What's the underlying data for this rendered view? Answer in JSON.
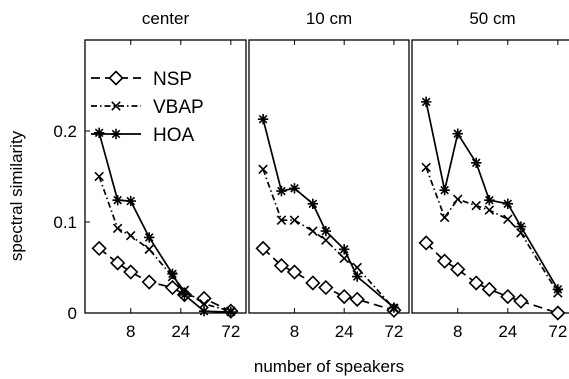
{
  "chart_data": {
    "type": "line",
    "xlabel": "number of speakers",
    "ylabel": "spectral similarity",
    "x_tick_labels": [
      "8",
      "24",
      "72"
    ],
    "y_tick_labels": [
      "0",
      "0.1",
      "0.2"
    ],
    "ylim": [
      0,
      0.3
    ],
    "grid": false,
    "legend_position": "top-left of first panel",
    "series_styles": {
      "NSP": {
        "line": "dashed",
        "marker": "diamond",
        "color": "#000000"
      },
      "VBAP": {
        "line": "dashdot",
        "marker": "x",
        "color": "#000000"
      },
      "HOA": {
        "line": "solid",
        "marker": "asterisk",
        "color": "#000000"
      }
    },
    "panels": [
      {
        "title": "center",
        "legend": [
          "NSP",
          "VBAP",
          "HOA"
        ],
        "series": [
          {
            "name": "NSP",
            "x": [
              4,
              6,
              8,
              12,
              20,
              26,
              40,
              72
            ],
            "values": [
              0.071,
              0.055,
              0.045,
              0.034,
              0.028,
              0.02,
              0.016,
              0.002
            ]
          },
          {
            "name": "VBAP",
            "x": [
              4,
              6,
              8,
              12,
              20,
              26,
              40,
              72
            ],
            "values": [
              0.15,
              0.093,
              0.085,
              0.07,
              0.04,
              0.025,
              0.01,
              0.002
            ]
          },
          {
            "name": "HOA",
            "x": [
              4,
              6,
              8,
              12,
              20,
              26,
              40,
              72
            ],
            "values": [
              0.198,
              0.124,
              0.123,
              0.083,
              0.043,
              0.02,
              0.002,
              0.001
            ]
          }
        ]
      },
      {
        "title": "10 cm",
        "legend": [],
        "series": [
          {
            "name": "NSP",
            "x": [
              4,
              6,
              8,
              12,
              16,
              24,
              32,
              72
            ],
            "values": [
              0.071,
              0.052,
              0.045,
              0.033,
              0.028,
              0.018,
              0.015,
              0.003
            ]
          },
          {
            "name": "VBAP",
            "x": [
              4,
              6,
              8,
              12,
              16,
              24,
              32,
              72
            ],
            "values": [
              0.158,
              0.102,
              0.102,
              0.09,
              0.08,
              0.06,
              0.05,
              0.005
            ]
          },
          {
            "name": "HOA",
            "x": [
              4,
              6,
              8,
              12,
              16,
              24,
              32,
              72
            ],
            "values": [
              0.213,
              0.134,
              0.137,
              0.12,
              0.09,
              0.07,
              0.04,
              0.006
            ]
          }
        ]
      },
      {
        "title": "50 cm",
        "legend": [],
        "series": [
          {
            "name": "NSP",
            "x": [
              4,
              6,
              8,
              12,
              16,
              24,
              32,
              72
            ],
            "values": [
              0.077,
              0.057,
              0.048,
              0.033,
              0.026,
              0.018,
              0.013,
              0.0
            ]
          },
          {
            "name": "VBAP",
            "x": [
              4,
              6,
              8,
              12,
              16,
              24,
              32,
              72
            ],
            "values": [
              0.16,
              0.105,
              0.125,
              0.118,
              0.113,
              0.103,
              0.088,
              0.022
            ]
          },
          {
            "name": "HOA",
            "x": [
              4,
              6,
              8,
              12,
              16,
              24,
              32,
              72
            ],
            "values": [
              0.232,
              0.135,
              0.197,
              0.165,
              0.124,
              0.12,
              0.095,
              0.026
            ]
          }
        ]
      }
    ]
  }
}
